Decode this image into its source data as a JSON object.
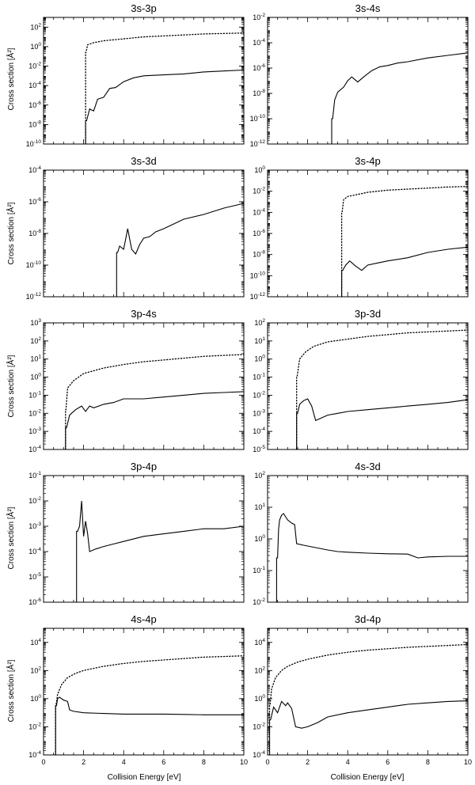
{
  "figure": {
    "ylabel": "Cross section [Å²]",
    "xlabel": "Collision Energy [eV]",
    "x_ticks": [
      "0",
      "2",
      "4",
      "6",
      "8",
      "10"
    ]
  },
  "chart_data": [
    {
      "type": "line",
      "title": "3s-3p",
      "xlim": [
        0,
        10
      ],
      "ylim_log10": [
        -10,
        3
      ],
      "yscale": "log",
      "y_ticks": [
        {
          "mant": "10",
          "exp": "2"
        },
        {
          "mant": "10",
          "exp": "0"
        },
        {
          "mant": "10",
          "exp": "-2"
        },
        {
          "mant": "10",
          "exp": "-4"
        },
        {
          "mant": "10",
          "exp": "-6"
        },
        {
          "mant": "10",
          "exp": "-8"
        },
        {
          "mant": "10",
          "exp": "-10"
        }
      ],
      "series": [
        {
          "style": "solid",
          "threshold": 2.1,
          "x": [
            2.15,
            2.3,
            2.5,
            2.7,
            3.0,
            3.3,
            3.6,
            4.0,
            4.5,
            5.0,
            6.0,
            7.0,
            8.0,
            9.0,
            10.0
          ],
          "log10_y": [
            -7.6,
            -6.4,
            -6.6,
            -5.4,
            -5.2,
            -4.3,
            -4.2,
            -3.6,
            -3.2,
            -3.0,
            -2.9,
            -2.8,
            -2.6,
            -2.5,
            -2.4
          ]
        },
        {
          "style": "dotted",
          "threshold": 2.1,
          "x": [
            2.12,
            2.2,
            2.5,
            3.0,
            4.0,
            5.0,
            6.0,
            7.0,
            8.0,
            9.0,
            10.0
          ],
          "log10_y": [
            -0.6,
            0.2,
            0.4,
            0.6,
            0.8,
            1.0,
            1.1,
            1.2,
            1.3,
            1.35,
            1.4
          ]
        }
      ]
    },
    {
      "type": "line",
      "title": "3s-4s",
      "xlim": [
        0,
        10
      ],
      "ylim_log10": [
        -12,
        -2
      ],
      "yscale": "log",
      "y_ticks": [
        {
          "mant": "10",
          "exp": "-2"
        },
        {
          "mant": "10",
          "exp": "-4"
        },
        {
          "mant": "10",
          "exp": "-6"
        },
        {
          "mant": "10",
          "exp": "-8"
        },
        {
          "mant": "10",
          "exp": "-10"
        },
        {
          "mant": "10",
          "exp": "-12"
        }
      ],
      "series": [
        {
          "style": "solid",
          "threshold": 3.2,
          "x": [
            3.25,
            3.35,
            3.5,
            3.8,
            4.0,
            4.2,
            4.5,
            4.8,
            5.2,
            5.6,
            6.0,
            6.5,
            7.0,
            8.0,
            9.0,
            10.0
          ],
          "log10_y": [
            -10.0,
            -8.5,
            -7.9,
            -7.5,
            -7.0,
            -6.7,
            -7.1,
            -6.7,
            -6.2,
            -5.9,
            -5.8,
            -5.6,
            -5.5,
            -5.2,
            -5.0,
            -4.8
          ]
        }
      ]
    },
    {
      "type": "line",
      "title": "3s-3d",
      "xlim": [
        0,
        10
      ],
      "ylim_log10": [
        -12,
        -4
      ],
      "yscale": "log",
      "y_ticks": [
        {
          "mant": "10",
          "exp": "-4"
        },
        {
          "mant": "10",
          "exp": "-6"
        },
        {
          "mant": "10",
          "exp": "-8"
        },
        {
          "mant": "10",
          "exp": "-10"
        },
        {
          "mant": "10",
          "exp": "-12"
        }
      ],
      "series": [
        {
          "style": "solid",
          "threshold": 3.65,
          "x": [
            3.7,
            3.8,
            4.0,
            4.2,
            4.4,
            4.6,
            4.8,
            5.0,
            5.3,
            5.6,
            6.0,
            6.5,
            7.0,
            8.0,
            9.0,
            10.0
          ],
          "log10_y": [
            -9.2,
            -8.8,
            -9.0,
            -7.7,
            -9.0,
            -9.3,
            -8.7,
            -8.3,
            -8.2,
            -7.9,
            -7.7,
            -7.4,
            -7.1,
            -6.8,
            -6.4,
            -6.1
          ]
        }
      ]
    },
    {
      "type": "line",
      "title": "3s-4p",
      "xlim": [
        0,
        10
      ],
      "ylim_log10": [
        -12,
        0
      ],
      "yscale": "log",
      "y_ticks": [
        {
          "mant": "10",
          "exp": "0"
        },
        {
          "mant": "10",
          "exp": "-2"
        },
        {
          "mant": "10",
          "exp": "-4"
        },
        {
          "mant": "10",
          "exp": "-6"
        },
        {
          "mant": "10",
          "exp": "-8"
        },
        {
          "mant": "10",
          "exp": "-10"
        },
        {
          "mant": "10",
          "exp": "-12"
        }
      ],
      "series": [
        {
          "style": "solid",
          "threshold": 3.7,
          "x": [
            3.75,
            3.9,
            4.1,
            4.4,
            4.7,
            5.0,
            5.5,
            6.0,
            7.0,
            8.0,
            9.0,
            10.0
          ],
          "log10_y": [
            -9.5,
            -9.0,
            -8.6,
            -9.1,
            -9.5,
            -9.0,
            -8.8,
            -8.6,
            -8.3,
            -7.8,
            -7.5,
            -7.3
          ]
        },
        {
          "style": "dotted",
          "threshold": 3.7,
          "x": [
            3.72,
            3.8,
            4.0,
            4.5,
            5.0,
            6.0,
            7.0,
            8.0,
            9.0,
            10.0
          ],
          "log10_y": [
            -4.0,
            -2.8,
            -2.5,
            -2.3,
            -2.1,
            -1.9,
            -1.8,
            -1.7,
            -1.6,
            -1.55
          ]
        }
      ]
    },
    {
      "type": "line",
      "title": "3p-4s",
      "xlim": [
        0,
        10
      ],
      "ylim_log10": [
        -4,
        3
      ],
      "yscale": "log",
      "y_ticks": [
        {
          "mant": "10",
          "exp": "3"
        },
        {
          "mant": "10",
          "exp": "2"
        },
        {
          "mant": "10",
          "exp": "1"
        },
        {
          "mant": "10",
          "exp": "0"
        },
        {
          "mant": "10",
          "exp": "-1"
        },
        {
          "mant": "10",
          "exp": "-2"
        },
        {
          "mant": "10",
          "exp": "-3"
        },
        {
          "mant": "10",
          "exp": "-4"
        }
      ],
      "series": [
        {
          "style": "solid",
          "threshold": 1.1,
          "x": [
            1.15,
            1.3,
            1.6,
            1.9,
            2.1,
            2.3,
            2.5,
            3.0,
            3.5,
            4.0,
            5.0,
            6.0,
            7.0,
            8.0,
            9.0,
            10.0
          ],
          "log10_y": [
            -2.8,
            -2.1,
            -1.8,
            -1.6,
            -1.9,
            -1.6,
            -1.7,
            -1.5,
            -1.4,
            -1.2,
            -1.2,
            -1.1,
            -1.0,
            -0.9,
            -0.85,
            -0.8
          ]
        },
        {
          "style": "dotted",
          "threshold": 1.1,
          "x": [
            1.12,
            1.2,
            1.5,
            2.0,
            3.0,
            4.0,
            5.0,
            6.0,
            7.0,
            8.0,
            9.0,
            10.0
          ],
          "log10_y": [
            -1.8,
            -0.6,
            -0.2,
            0.2,
            0.5,
            0.7,
            0.85,
            0.95,
            1.05,
            1.15,
            1.2,
            1.25
          ]
        }
      ]
    },
    {
      "type": "line",
      "title": "3p-3d",
      "xlim": [
        0,
        10
      ],
      "ylim_log10": [
        -5,
        2
      ],
      "yscale": "log",
      "y_ticks": [
        {
          "mant": "10",
          "exp": "2"
        },
        {
          "mant": "10",
          "exp": "1"
        },
        {
          "mant": "10",
          "exp": "0"
        },
        {
          "mant": "10",
          "exp": "-1"
        },
        {
          "mant": "10",
          "exp": "-2"
        },
        {
          "mant": "10",
          "exp": "-3"
        },
        {
          "mant": "10",
          "exp": "-4"
        },
        {
          "mant": "10",
          "exp": "-5"
        }
      ],
      "series": [
        {
          "style": "solid",
          "threshold": 1.45,
          "x": [
            1.5,
            1.6,
            1.8,
            2.0,
            2.2,
            2.4,
            2.6,
            3.0,
            3.5,
            4.0,
            5.0,
            6.0,
            7.0,
            8.0,
            9.0,
            10.0
          ],
          "log10_y": [
            -3.0,
            -2.5,
            -2.3,
            -2.2,
            -2.6,
            -3.4,
            -3.3,
            -3.1,
            -3.0,
            -2.9,
            -2.8,
            -2.7,
            -2.6,
            -2.5,
            -2.4,
            -2.25
          ]
        },
        {
          "style": "dotted",
          "threshold": 1.45,
          "x": [
            1.47,
            1.6,
            1.9,
            2.3,
            3.0,
            4.0,
            5.0,
            6.0,
            7.0,
            8.0,
            9.0,
            10.0
          ],
          "log10_y": [
            -1.0,
            0.0,
            0.4,
            0.7,
            0.95,
            1.1,
            1.25,
            1.35,
            1.45,
            1.5,
            1.55,
            1.6
          ]
        }
      ]
    },
    {
      "type": "line",
      "title": "3p-4p",
      "xlim": [
        0,
        10
      ],
      "ylim_log10": [
        -6,
        -1
      ],
      "yscale": "log",
      "y_ticks": [
        {
          "mant": "10",
          "exp": "-1"
        },
        {
          "mant": "10",
          "exp": "-2"
        },
        {
          "mant": "10",
          "exp": "-3"
        },
        {
          "mant": "10",
          "exp": "-4"
        },
        {
          "mant": "10",
          "exp": "-5"
        },
        {
          "mant": "10",
          "exp": "-6"
        }
      ],
      "series": [
        {
          "style": "solid",
          "threshold": 1.65,
          "x": [
            1.7,
            1.8,
            1.9,
            2.0,
            2.1,
            2.2,
            2.3,
            2.6,
            3.0,
            3.5,
            4.0,
            5.0,
            6.0,
            7.0,
            8.0,
            9.0,
            10.0
          ],
          "log10_y": [
            -3.2,
            -3.0,
            -2.0,
            -3.4,
            -2.8,
            -3.3,
            -4.0,
            -3.9,
            -3.8,
            -3.7,
            -3.6,
            -3.4,
            -3.3,
            -3.2,
            -3.1,
            -3.1,
            -3.0
          ]
        }
      ]
    },
    {
      "type": "line",
      "title": "4s-3d",
      "xlim": [
        0,
        10
      ],
      "ylim_log10": [
        -2,
        2
      ],
      "yscale": "log",
      "y_ticks": [
        {
          "mant": "10",
          "exp": "2"
        },
        {
          "mant": "10",
          "exp": "1"
        },
        {
          "mant": "10",
          "exp": "0"
        },
        {
          "mant": "10",
          "exp": "-1"
        },
        {
          "mant": "10",
          "exp": "-2"
        }
      ],
      "series": [
        {
          "style": "solid",
          "threshold": 0.45,
          "x": [
            0.5,
            0.55,
            0.6,
            0.7,
            0.8,
            1.0,
            1.2,
            1.35,
            1.45,
            1.8,
            2.2,
            2.6,
            3.0,
            3.5,
            4.0,
            5.0,
            6.0,
            7.0,
            7.5,
            8.0,
            9.0,
            10.0
          ],
          "log10_y": [
            -0.6,
            0.3,
            0.6,
            0.75,
            0.8,
            0.6,
            0.5,
            0.45,
            -0.15,
            -0.2,
            -0.25,
            -0.3,
            -0.35,
            -0.4,
            -0.42,
            -0.45,
            -0.47,
            -0.48,
            -0.6,
            -0.57,
            -0.55,
            -0.55
          ]
        }
      ]
    },
    {
      "type": "line",
      "title": "4s-4p",
      "xlim": [
        0,
        10
      ],
      "ylim_log10": [
        -4,
        5
      ],
      "yscale": "log",
      "y_ticks": [
        {
          "mant": "10",
          "exp": "4"
        },
        {
          "mant": "10",
          "exp": "2"
        },
        {
          "mant": "10",
          "exp": "0"
        },
        {
          "mant": "10",
          "exp": "-2"
        },
        {
          "mant": "10",
          "exp": "-4"
        }
      ],
      "series": [
        {
          "style": "solid",
          "threshold": 0.6,
          "x": [
            0.65,
            0.7,
            0.8,
            1.0,
            1.2,
            1.3,
            1.5,
            2.0,
            3.0,
            4.0,
            5.0,
            6.0,
            7.0,
            8.0,
            9.0,
            10.0
          ],
          "log10_y": [
            -0.5,
            0.0,
            0.1,
            -0.1,
            -0.2,
            -0.8,
            -0.9,
            -1.0,
            -1.05,
            -1.1,
            -1.1,
            -1.1,
            -1.12,
            -1.15,
            -1.15,
            -1.15
          ]
        },
        {
          "style": "dotted",
          "threshold": 0.6,
          "x": [
            0.62,
            0.7,
            0.9,
            1.2,
            1.6,
            2.0,
            3.0,
            4.0,
            5.0,
            6.0,
            7.0,
            8.0,
            9.0,
            10.0
          ],
          "log10_y": [
            -0.5,
            0.3,
            1.0,
            1.5,
            1.8,
            2.0,
            2.3,
            2.5,
            2.65,
            2.75,
            2.85,
            2.95,
            3.0,
            3.05
          ]
        }
      ]
    },
    {
      "type": "line",
      "title": "3d-4p",
      "xlim": [
        0,
        10
      ],
      "ylim_log10": [
        -4,
        5
      ],
      "yscale": "log",
      "y_ticks": [
        {
          "mant": "10",
          "exp": "4"
        },
        {
          "mant": "10",
          "exp": "2"
        },
        {
          "mant": "10",
          "exp": "0"
        },
        {
          "mant": "10",
          "exp": "-2"
        },
        {
          "mant": "10",
          "exp": "-4"
        }
      ],
      "series": [
        {
          "style": "solid",
          "threshold": 0.1,
          "x": [
            0.15,
            0.3,
            0.5,
            0.7,
            0.9,
            1.0,
            1.2,
            1.4,
            1.7,
            2.0,
            2.5,
            3.0,
            4.0,
            5.0,
            6.0,
            7.0,
            8.0,
            9.0,
            10.0
          ],
          "log10_y": [
            -1.5,
            -0.6,
            -1.0,
            -0.2,
            -0.5,
            -0.3,
            -0.7,
            -2.0,
            -2.1,
            -2.0,
            -1.7,
            -1.3,
            -1.0,
            -0.8,
            -0.6,
            -0.4,
            -0.3,
            -0.2,
            -0.15
          ]
        },
        {
          "style": "dotted",
          "threshold": 0.1,
          "x": [
            0.12,
            0.2,
            0.4,
            0.7,
            1.0,
            1.5,
            2.0,
            3.0,
            4.0,
            5.0,
            6.0,
            7.0,
            8.0,
            9.0,
            10.0
          ],
          "log10_y": [
            -0.5,
            0.7,
            1.5,
            2.0,
            2.3,
            2.6,
            2.8,
            3.1,
            3.3,
            3.45,
            3.55,
            3.65,
            3.72,
            3.78,
            3.85
          ]
        }
      ]
    }
  ]
}
